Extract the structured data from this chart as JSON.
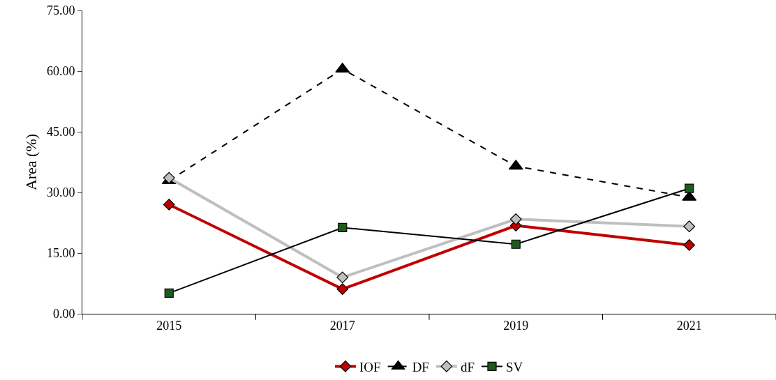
{
  "chart_data": {
    "type": "line",
    "ylabel": "Area (%)",
    "categories": [
      "2015",
      "2017",
      "2019",
      "2021"
    ],
    "series": [
      {
        "name": "IOF",
        "color": "#c00000",
        "values": [
          27.0,
          6.1,
          21.8,
          17.0
        ],
        "marker": "diamond",
        "line_style": "solid"
      },
      {
        "name": "DF",
        "color": "#000000",
        "values": [
          32.9,
          60.5,
          36.5,
          28.8
        ],
        "marker": "triangle",
        "line_style": "dashed"
      },
      {
        "name": "dF",
        "color": "#bfbfbf",
        "values": [
          33.6,
          9.0,
          23.4,
          21.6
        ],
        "marker": "diamond",
        "line_style": "solid"
      },
      {
        "name": "SV",
        "color": "#000000",
        "values": [
          5.1,
          21.3,
          17.2,
          31.0
        ],
        "marker": "square",
        "line_style": "solid"
      }
    ],
    "ylim": [
      0,
      75
    ],
    "yticks": [
      {
        "value": 0,
        "label": "0.00"
      },
      {
        "value": 15,
        "label": "15.00"
      },
      {
        "value": 30,
        "label": "30.00"
      },
      {
        "value": 45,
        "label": "45.00"
      },
      {
        "value": 60,
        "label": "60.00"
      },
      {
        "value": 75,
        "label": "75.00"
      }
    ],
    "grid": false,
    "legend": "bottom"
  }
}
